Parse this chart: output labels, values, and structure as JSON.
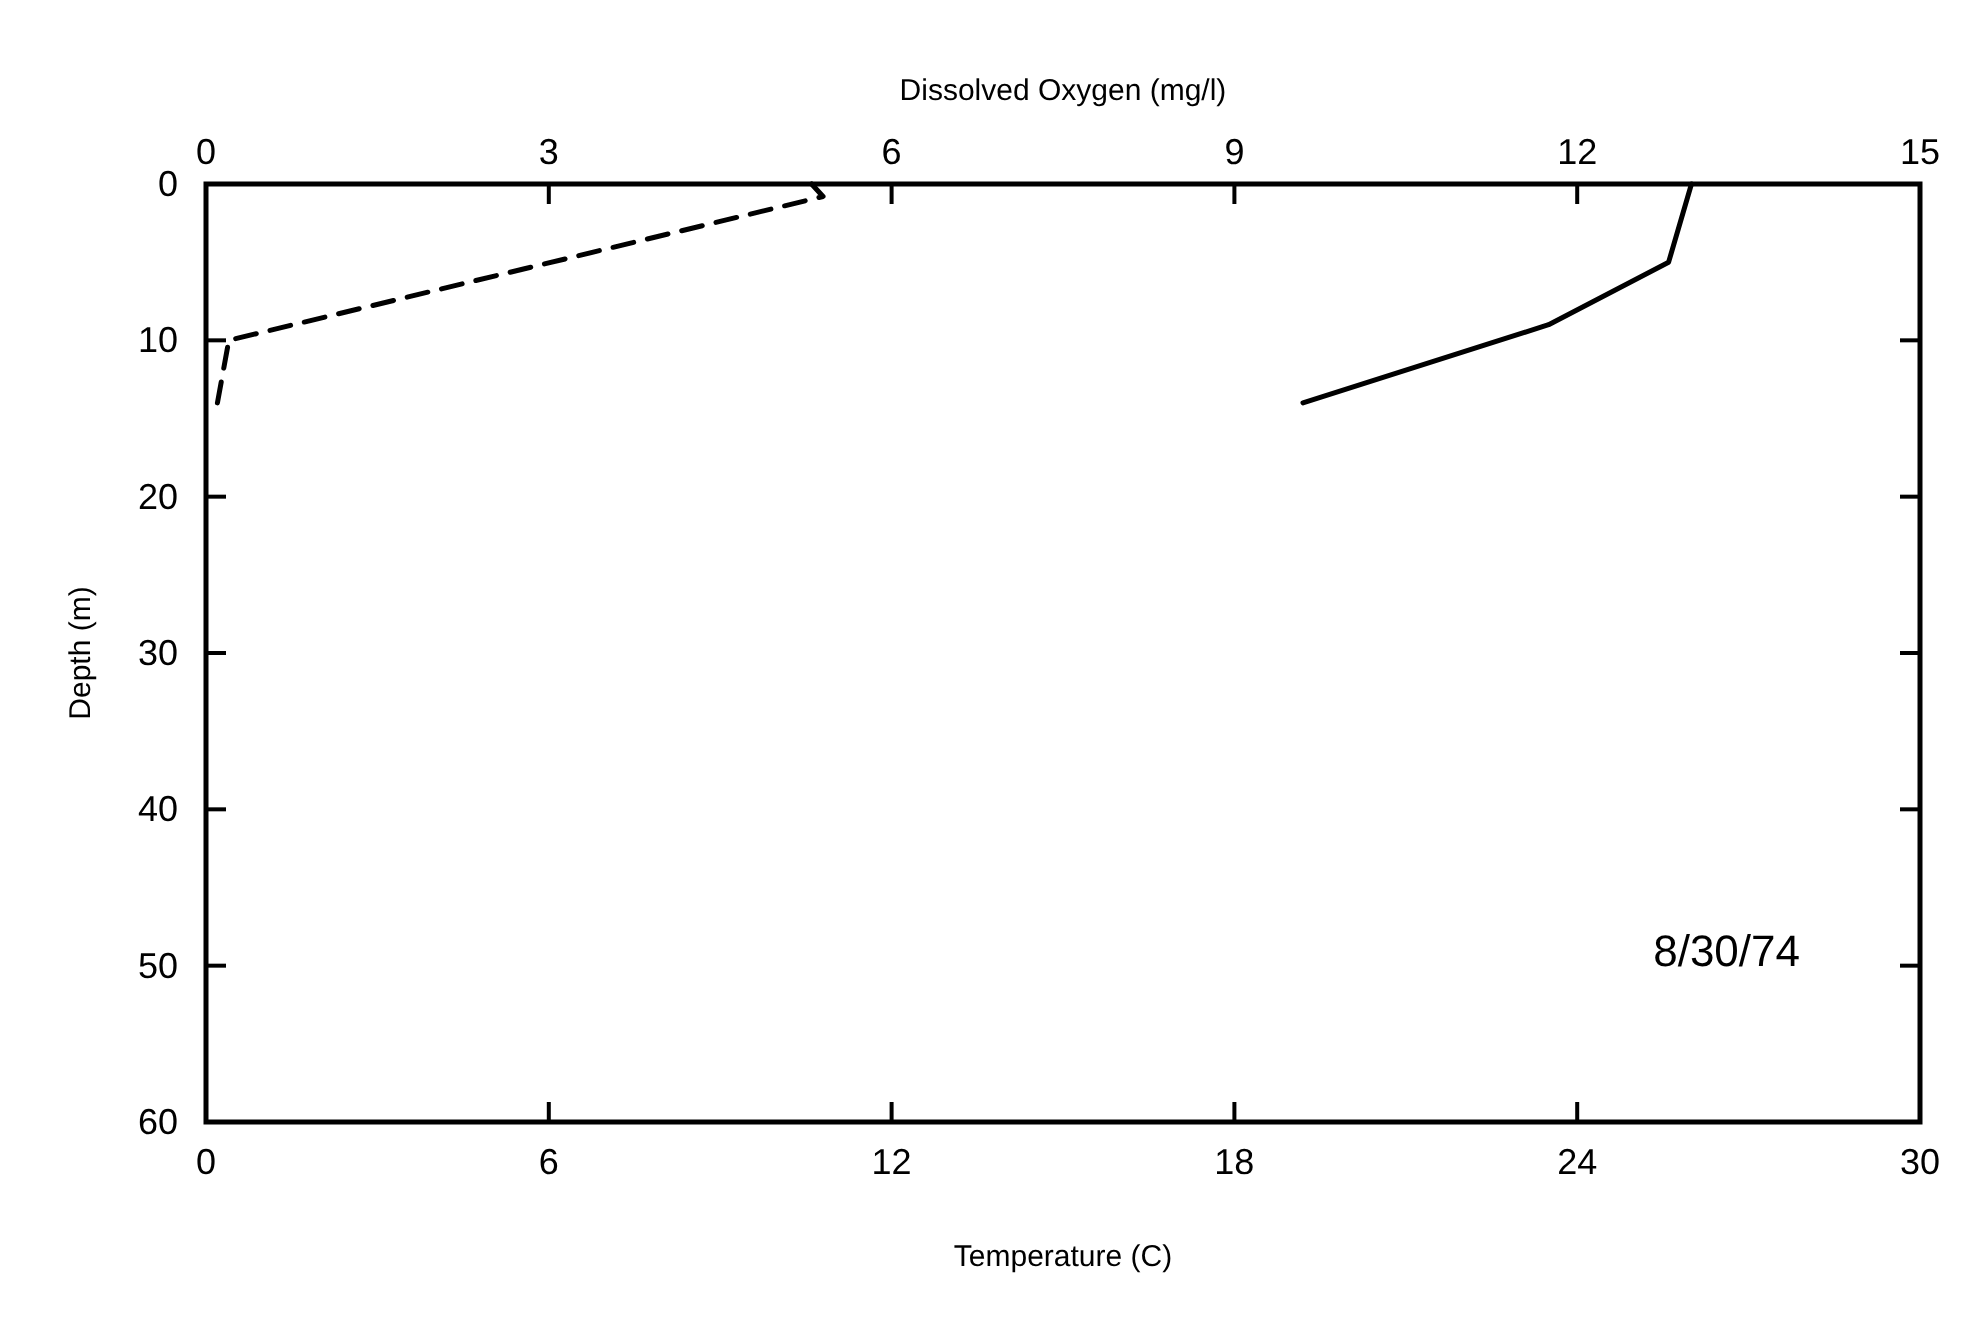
{
  "chart_data": {
    "type": "line",
    "xlabel": "Temperature (C)",
    "x2label": "Dissolved Oxygen (mg/l)",
    "ylabel": "Depth (m)",
    "xlim": [
      0,
      30
    ],
    "xticks": [
      0,
      6,
      12,
      18,
      24,
      30
    ],
    "x2lim": [
      0,
      15
    ],
    "x2ticks": [
      0,
      3,
      6,
      9,
      12,
      15
    ],
    "ylim": [
      60,
      0
    ],
    "yticks": [
      0,
      10,
      20,
      30,
      40,
      50,
      60
    ],
    "grid": false,
    "marker": "none",
    "series": [
      {
        "color": "#000000",
        "line_style": "solid",
        "x": [
          26.0,
          25.6,
          23.5,
          19.2
        ],
        "values": [
          0,
          5,
          9,
          14
        ]
      },
      {
        "color": "#000000",
        "line_style": "dashed",
        "axis": "x2",
        "x": [
          5.3,
          5.4,
          0.2,
          0.1
        ],
        "values": [
          0,
          0.8,
          10,
          14
        ]
      }
    ],
    "annotations": [
      "8/30/74"
    ]
  }
}
